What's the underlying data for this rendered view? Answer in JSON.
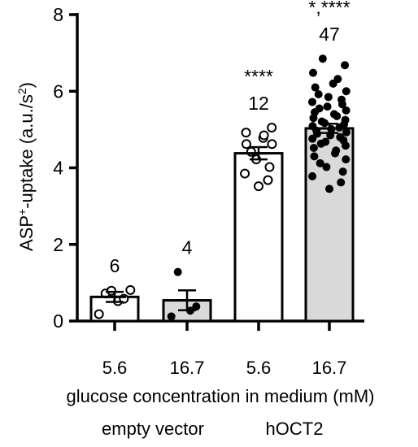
{
  "chart_data": {
    "type": "bar",
    "title": "",
    "ylabel": {
      "main": "ASP",
      "sup1": "+",
      "mid": "-uptake (a.u./s",
      "sup2": "2",
      "end": ")"
    },
    "xlabel": "glucose concentration in medium (mM)",
    "ylim": [
      0,
      8
    ],
    "yticks": [
      "0",
      "2",
      "4",
      "6",
      "8"
    ],
    "ytick_values": [
      0,
      2,
      4,
      6,
      8
    ],
    "categories": [
      "5.6",
      "16.7",
      "5.6",
      "16.7"
    ],
    "groups": [
      {
        "label": "empty vector",
        "categories": [
          0,
          1
        ]
      },
      {
        "label": "hOCT2",
        "categories": [
          2,
          3
        ]
      }
    ],
    "colors": {
      "bar_white": "#ffffff",
      "bar_gray": "#d9d9d9",
      "edge": "#000000"
    },
    "series": [
      {
        "category": "5.6",
        "group": "empty vector",
        "fill": "white",
        "marker": "open-circle",
        "mean": 0.63,
        "sem": 0.13,
        "n_label": "6",
        "significance": "",
        "points": [
          0.18,
          0.52,
          0.58,
          0.72,
          0.79,
          0.81
        ]
      },
      {
        "category": "16.7",
        "group": "empty vector",
        "fill": "gray",
        "marker": "filled-circle",
        "mean": 0.54,
        "sem": 0.26,
        "n_label": "4",
        "significance": "",
        "points": [
          0.12,
          0.27,
          0.38,
          1.28
        ]
      },
      {
        "category": "5.6",
        "group": "hOCT2",
        "fill": "white",
        "marker": "open-circle",
        "mean": 4.38,
        "sem": 0.16,
        "n_label": "12",
        "significance": "****",
        "points": [
          3.52,
          3.68,
          3.85,
          4.02,
          4.22,
          4.42,
          4.62,
          4.62,
          4.78,
          4.85,
          4.92,
          5.05
        ]
      },
      {
        "category": "16.7",
        "group": "hOCT2",
        "fill": "gray",
        "marker": "filled-circle",
        "mean": 5.03,
        "sem": 0.12,
        "n_label": "47",
        "significance": "*,****",
        "points": [
          3.45,
          3.62,
          3.78,
          3.9,
          4.02,
          4.12,
          4.22,
          4.3,
          4.38,
          4.45,
          4.52,
          4.58,
          4.63,
          4.68,
          4.72,
          4.76,
          4.8,
          4.85,
          4.89,
          4.93,
          4.97,
          5.01,
          5.05,
          5.09,
          5.13,
          5.17,
          5.21,
          5.25,
          5.3,
          5.35,
          5.4,
          5.45,
          5.5,
          5.55,
          5.6,
          5.66,
          5.72,
          5.78,
          5.85,
          5.92,
          6.0,
          6.1,
          6.2,
          6.32,
          6.48,
          6.68,
          6.85
        ]
      }
    ]
  }
}
